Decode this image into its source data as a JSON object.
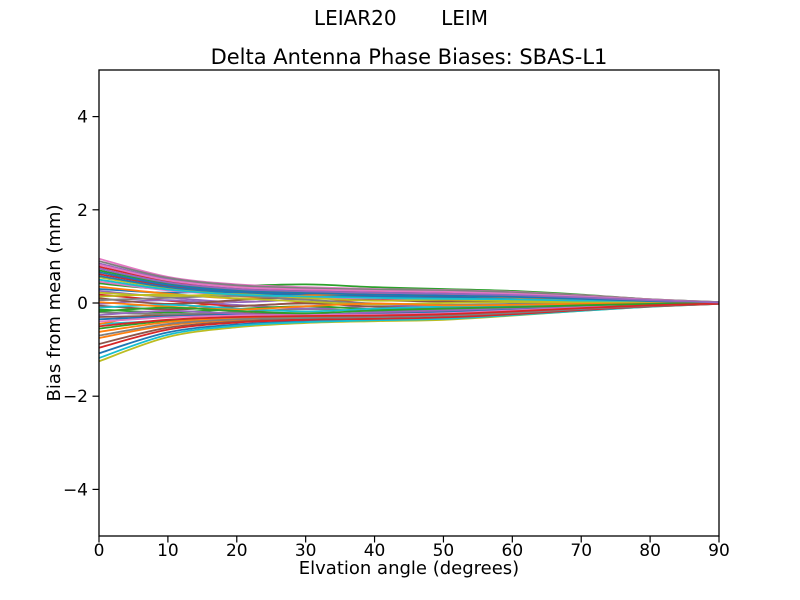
{
  "figure": {
    "suptitle": "LEIAR20       LEIM",
    "title": "Delta Antenna Phase Biases: SBAS-L1",
    "background": "#ffffff"
  },
  "axes": {
    "xlabel": "Elvation angle (degrees)",
    "ylabel": "Bias from mean (mm)",
    "xlim": [
      0,
      90
    ],
    "ylim": [
      -5,
      5
    ],
    "xtick_values": [
      0,
      10,
      20,
      30,
      40,
      50,
      60,
      70,
      80,
      90
    ],
    "xtick_labels": [
      "0",
      "10",
      "20",
      "30",
      "40",
      "50",
      "60",
      "70",
      "80",
      "90"
    ],
    "ytick_values": [
      4,
      2,
      0,
      -2,
      -4
    ],
    "ytick_labels": [
      "4",
      "2",
      "0",
      "−2",
      "−4"
    ],
    "axis_color": "#000000",
    "grid": false,
    "legend": false
  },
  "chart_data": {
    "type": "line",
    "x": [
      0,
      10,
      20,
      30,
      40,
      50,
      60,
      70,
      80,
      90
    ],
    "x_unit": "degrees",
    "y_unit": "mm",
    "title": "Delta Antenna Phase Biases: SBAS-L1",
    "xlabel": "Elvation angle (degrees)",
    "ylabel": "Bias from mean (mm)",
    "xlim": [
      0,
      90
    ],
    "ylim": [
      -5,
      5
    ],
    "palette": [
      "#1f77b4",
      "#ff7f0e",
      "#2ca02c",
      "#d62728",
      "#9467bd",
      "#8c564b",
      "#e377c2",
      "#7f7f7f",
      "#bcbd22",
      "#17becf"
    ],
    "series": [
      {
        "color_index": 0,
        "values": [
          0.3,
          0.22,
          0.27,
          0.19,
          0.11,
          0.13,
          0.1,
          0.06,
          0.03,
          0.01
        ]
      },
      {
        "color_index": 1,
        "values": [
          -0.75,
          -0.48,
          -0.37,
          -0.33,
          -0.31,
          -0.28,
          -0.21,
          -0.13,
          -0.06,
          -0.01
        ]
      },
      {
        "color_index": 2,
        "values": [
          0.42,
          0.3,
          0.36,
          0.4,
          0.34,
          0.3,
          0.26,
          0.18,
          0.08,
          0.02
        ]
      },
      {
        "color_index": 3,
        "values": [
          0.78,
          0.47,
          0.32,
          0.27,
          0.24,
          0.22,
          0.18,
          0.13,
          0.06,
          0.01
        ]
      },
      {
        "color_index": 4,
        "values": [
          0.85,
          0.51,
          0.36,
          0.31,
          0.28,
          0.26,
          0.22,
          0.15,
          0.07,
          0.02
        ]
      },
      {
        "color_index": 5,
        "values": [
          -0.88,
          -0.53,
          -0.4,
          -0.35,
          -0.33,
          -0.3,
          -0.23,
          -0.14,
          -0.06,
          -0.02
        ]
      },
      {
        "color_index": 6,
        "values": [
          0.95,
          0.56,
          0.4,
          0.34,
          0.3,
          0.28,
          0.24,
          0.17,
          0.08,
          0.02
        ]
      },
      {
        "color_index": 7,
        "values": [
          0.9,
          0.54,
          0.38,
          0.32,
          0.29,
          0.27,
          0.23,
          0.16,
          0.08,
          0.02
        ]
      },
      {
        "color_index": 8,
        "values": [
          0.55,
          0.32,
          0.2,
          0.16,
          0.13,
          0.11,
          0.09,
          0.06,
          0.03,
          0.01
        ]
      },
      {
        "color_index": 9,
        "values": [
          -0.45,
          -0.38,
          -0.34,
          -0.32,
          -0.31,
          -0.29,
          -0.22,
          -0.14,
          -0.06,
          -0.01
        ]
      },
      {
        "color_index": 0,
        "values": [
          -1.08,
          -0.63,
          -0.46,
          -0.39,
          -0.36,
          -0.33,
          -0.25,
          -0.16,
          -0.07,
          -0.02
        ]
      },
      {
        "color_index": 1,
        "values": [
          -0.45,
          -0.18,
          0.06,
          0.16,
          0.19,
          0.16,
          0.12,
          0.08,
          0.04,
          0.01
        ]
      },
      {
        "color_index": 2,
        "values": [
          0.7,
          0.42,
          0.28,
          0.23,
          0.2,
          0.18,
          0.15,
          0.11,
          0.05,
          0.01
        ]
      },
      {
        "color_index": 3,
        "values": [
          0.62,
          0.37,
          0.24,
          0.19,
          0.16,
          0.14,
          0.12,
          0.08,
          0.04,
          0.01
        ]
      },
      {
        "color_index": 4,
        "values": [
          0.26,
          0.12,
          0.02,
          0.09,
          0.14,
          0.11,
          0.08,
          0.05,
          0.02,
          0.0
        ]
      },
      {
        "color_index": 5,
        "values": [
          -0.3,
          -0.27,
          -0.22,
          -0.25,
          -0.22,
          -0.18,
          -0.13,
          -0.08,
          -0.03,
          -0.01
        ]
      },
      {
        "color_index": 6,
        "values": [
          0.82,
          0.49,
          0.34,
          0.29,
          0.26,
          0.24,
          0.2,
          0.14,
          0.07,
          0.01
        ]
      },
      {
        "color_index": 7,
        "values": [
          -0.2,
          -0.24,
          -0.19,
          -0.13,
          -0.17,
          -0.14,
          -0.1,
          -0.06,
          -0.03,
          0.0
        ]
      },
      {
        "color_index": 8,
        "values": [
          -1.25,
          -0.73,
          -0.52,
          -0.43,
          -0.39,
          -0.36,
          -0.27,
          -0.17,
          -0.08,
          -0.02
        ]
      },
      {
        "color_index": 9,
        "values": [
          -1.18,
          -0.68,
          -0.49,
          -0.41,
          -0.37,
          -0.34,
          -0.26,
          -0.17,
          -0.08,
          -0.02
        ]
      },
      {
        "color_index": 0,
        "values": [
          0.58,
          0.34,
          0.22,
          0.17,
          0.14,
          0.12,
          0.1,
          0.07,
          0.03,
          0.01
        ]
      },
      {
        "color_index": 1,
        "values": [
          0.35,
          0.2,
          0.1,
          0.16,
          0.21,
          0.17,
          0.12,
          0.07,
          0.03,
          0.01
        ]
      },
      {
        "color_index": 2,
        "values": [
          -0.55,
          -0.38,
          -0.31,
          -0.29,
          -0.28,
          -0.25,
          -0.19,
          -0.12,
          -0.05,
          -0.01
        ]
      },
      {
        "color_index": 3,
        "values": [
          0.18,
          0.05,
          -0.06,
          0.01,
          0.07,
          0.04,
          0.03,
          0.02,
          0.01,
          0.0
        ]
      },
      {
        "color_index": 4,
        "values": [
          -0.02,
          0.06,
          -0.04,
          -0.12,
          -0.07,
          -0.05,
          -0.03,
          -0.02,
          -0.01,
          0.0
        ]
      },
      {
        "color_index": 5,
        "values": [
          0.1,
          -0.02,
          0.06,
          0.12,
          0.06,
          0.03,
          0.02,
          0.01,
          0.0,
          0.0
        ]
      },
      {
        "color_index": 6,
        "values": [
          0.46,
          0.27,
          0.17,
          0.12,
          0.1,
          0.08,
          0.07,
          0.05,
          0.02,
          0.0
        ]
      },
      {
        "color_index": 7,
        "values": [
          0.06,
          0.11,
          0.15,
          0.07,
          -0.01,
          -0.04,
          -0.02,
          -0.01,
          0.0,
          0.0
        ]
      },
      {
        "color_index": 8,
        "values": [
          0.22,
          0.15,
          0.19,
          0.11,
          0.05,
          0.07,
          0.05,
          0.03,
          0.01,
          0.0
        ]
      },
      {
        "color_index": 9,
        "values": [
          0.5,
          0.29,
          0.18,
          0.14,
          0.11,
          0.09,
          0.08,
          0.05,
          0.03,
          0.0
        ]
      },
      {
        "color_index": 0,
        "values": [
          -0.35,
          -0.29,
          -0.25,
          -0.27,
          -0.24,
          -0.2,
          -0.14,
          -0.09,
          -0.04,
          -0.01
        ]
      },
      {
        "color_index": 1,
        "values": [
          -0.62,
          -0.41,
          -0.33,
          -0.3,
          -0.29,
          -0.26,
          -0.2,
          -0.12,
          -0.05,
          -0.01
        ]
      },
      {
        "color_index": 2,
        "values": [
          -0.14,
          -0.2,
          -0.13,
          -0.07,
          -0.13,
          -0.11,
          -0.08,
          -0.05,
          -0.02,
          0.0
        ]
      },
      {
        "color_index": 3,
        "values": [
          -0.96,
          -0.57,
          -0.42,
          -0.36,
          -0.34,
          -0.31,
          -0.24,
          -0.15,
          -0.07,
          -0.02
        ]
      },
      {
        "color_index": 4,
        "values": [
          -0.26,
          -0.17,
          -0.23,
          -0.26,
          -0.2,
          -0.16,
          -0.11,
          -0.07,
          -0.03,
          -0.01
        ]
      },
      {
        "color_index": 5,
        "values": [
          -0.06,
          -0.14,
          -0.07,
          -0.01,
          -0.08,
          -0.1,
          -0.07,
          -0.04,
          -0.02,
          0.0
        ]
      },
      {
        "color_index": 6,
        "values": [
          -0.4,
          -0.31,
          -0.27,
          -0.26,
          -0.25,
          -0.22,
          -0.16,
          -0.1,
          -0.04,
          -0.01
        ]
      },
      {
        "color_index": 7,
        "values": [
          -0.7,
          -0.45,
          -0.35,
          -0.32,
          -0.3,
          -0.27,
          -0.21,
          -0.13,
          -0.06,
          -0.01
        ]
      },
      {
        "color_index": 8,
        "values": [
          0.14,
          0.18,
          0.1,
          0.03,
          -0.03,
          0.0,
          0.02,
          0.01,
          0.01,
          0.0
        ]
      },
      {
        "color_index": 9,
        "values": [
          -0.1,
          -0.04,
          -0.12,
          -0.18,
          -0.12,
          -0.08,
          -0.05,
          -0.03,
          -0.01,
          0.0
        ]
      },
      {
        "color_index": 0,
        "values": [
          0.66,
          0.39,
          0.26,
          0.21,
          0.18,
          0.16,
          0.13,
          0.09,
          0.04,
          0.01
        ]
      },
      {
        "color_index": 1,
        "values": [
          0.02,
          -0.08,
          -0.14,
          -0.07,
          -0.01,
          -0.05,
          -0.04,
          -0.02,
          -0.01,
          0.0
        ]
      },
      {
        "color_index": 2,
        "values": [
          -0.18,
          -0.1,
          -0.17,
          -0.22,
          -0.16,
          -0.12,
          -0.09,
          -0.05,
          -0.02,
          0.0
        ]
      },
      {
        "color_index": 3,
        "values": [
          -0.5,
          -0.36,
          -0.3,
          -0.28,
          -0.27,
          -0.24,
          -0.18,
          -0.11,
          -0.05,
          -0.01
        ]
      },
      {
        "color_index": 4,
        "values": [
          0.74,
          0.44,
          0.3,
          0.25,
          0.22,
          0.2,
          0.17,
          0.12,
          0.06,
          0.01
        ]
      }
    ]
  }
}
